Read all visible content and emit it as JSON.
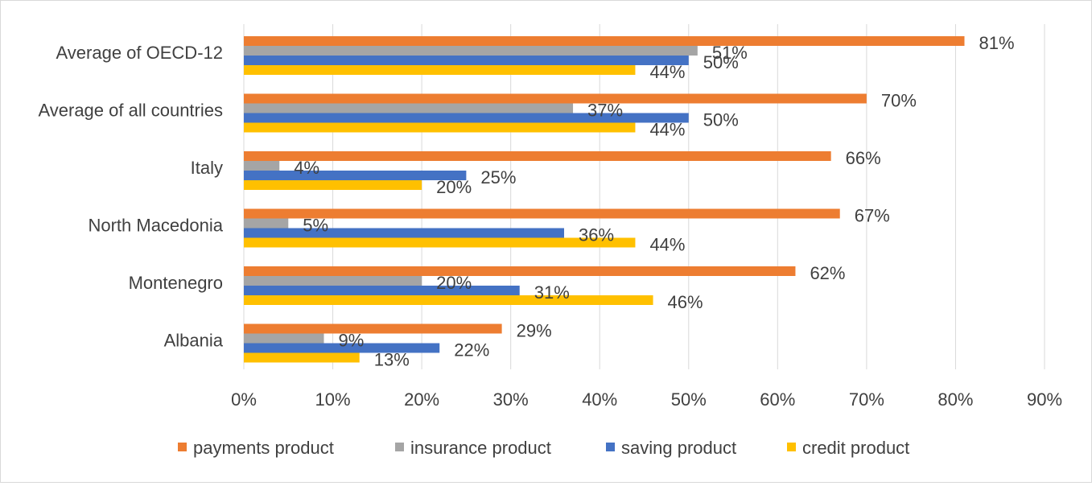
{
  "chart_data": {
    "type": "bar",
    "orientation": "horizontal",
    "categories": [
      "Albania",
      "Montenegro",
      "North Macedonia",
      "Italy",
      "Average of all countries",
      "Average of OECD-12"
    ],
    "series": [
      {
        "name": "payments product",
        "color": "#ed7d31",
        "values": [
          29,
          62,
          67,
          66,
          70,
          81
        ]
      },
      {
        "name": "insurance product",
        "color": "#a5a5a5",
        "values": [
          9,
          20,
          5,
          4,
          37,
          51
        ]
      },
      {
        "name": "saving product",
        "color": "#4472c4",
        "values": [
          22,
          31,
          36,
          25,
          50,
          50
        ]
      },
      {
        "name": "credit product",
        "color": "#ffc000",
        "values": [
          13,
          46,
          44,
          20,
          44,
          44
        ]
      }
    ],
    "value_suffix": "%",
    "xlim": [
      0,
      90
    ],
    "x_ticks": [
      "0%",
      "10%",
      "20%",
      "30%",
      "40%",
      "50%",
      "60%",
      "70%",
      "80%",
      "90%"
    ],
    "grid": "vertical",
    "legend": "bottom",
    "data_labels": true
  }
}
